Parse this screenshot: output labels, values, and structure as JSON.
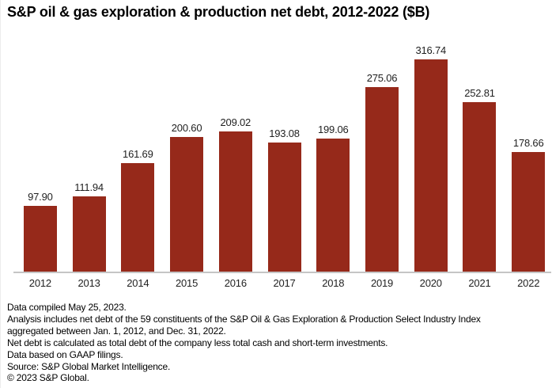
{
  "title": "S&P oil & gas exploration & production net debt, 2012-2022 ($B)",
  "chart_data": {
    "type": "bar",
    "title": "S&P oil & gas exploration & production net debt, 2012-2022 ($B)",
    "categories": [
      "2012",
      "2013",
      "2014",
      "2015",
      "2016",
      "2017",
      "2018",
      "2019",
      "2020",
      "2021",
      "2022"
    ],
    "values": [
      97.9,
      111.94,
      161.69,
      200.6,
      209.02,
      193.08,
      199.06,
      275.06,
      316.74,
      252.81,
      178.66
    ],
    "value_labels": [
      "97.90",
      "111.94",
      "161.69",
      "200.60",
      "209.02",
      "193.08",
      "199.06",
      "275.06",
      "316.74",
      "252.81",
      "178.66"
    ],
    "xlabel": "",
    "ylabel": "",
    "ylim": [
      0,
      330
    ],
    "grid": false,
    "legend": false,
    "value_label_position": "above-bars",
    "bar_color": "#96291a",
    "axis_line_color": "#c5c5c5",
    "label_color": "#1f1f1f"
  },
  "footnotes": [
    "Data compiled May 25, 2023.",
    "Analysis includes net debt of the 59 constituents of the S&P Oil & Gas Exploration & Production Select Industry Index",
    "aggregated between Jan. 1, 2012, and Dec. 31, 2022.",
    "Net debt is calculated as total debt of the company less total cash and short-term investments.",
    "Data based on GAAP filings.",
    "Source: S&P Global Market Intelligence.",
    "© 2023 S&P Global."
  ]
}
